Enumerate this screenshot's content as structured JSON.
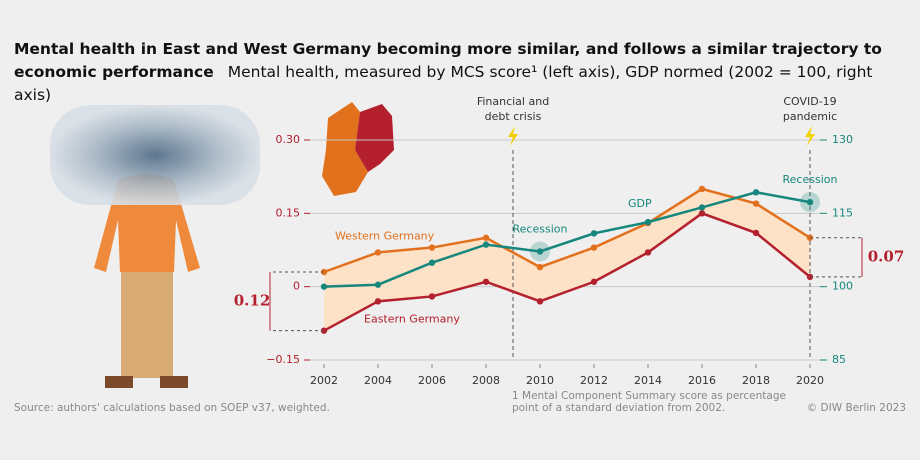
{
  "chart_data": {
    "type": "line",
    "title": "Mental health in East and West Germany becoming more similar, and follows a similar trajectory to economic performance",
    "subtitle": "Mental health, measured by MCS score¹ (left axis), GDP normed (2002 = 100, right axis)",
    "x": [
      2002,
      2004,
      2006,
      2008,
      2010,
      2012,
      2014,
      2016,
      2018,
      2020
    ],
    "xlim": [
      2000,
      2020.8
    ],
    "xticks": [
      2002,
      2004,
      2006,
      2008,
      2010,
      2012,
      2014,
      2016,
      2018,
      2020
    ],
    "ylim": [
      -0.15,
      0.3
    ],
    "yticks": [
      {
        "value": -0.15,
        "label": "−0.15"
      },
      0,
      {
        "value": 0.15,
        "label": "0.15"
      },
      {
        "value": 0.3,
        "label": "0.30"
      }
    ],
    "y2lim": [
      85,
      130
    ],
    "y2ticks": [
      85,
      100,
      115,
      130
    ],
    "grid": true,
    "series": [
      {
        "name": "Western Germany",
        "color": "#e2711d",
        "values": [
          0.03,
          0.07,
          0.08,
          0.1,
          0.04,
          0.08,
          0.13,
          0.2,
          0.17,
          0.1
        ]
      },
      {
        "name": "Eastern Germany",
        "color": "#b5202e",
        "values": [
          -0.09,
          -0.03,
          -0.02,
          0.01,
          -0.03,
          0.01,
          0.07,
          0.15,
          0.11,
          0.02
        ]
      },
      {
        "name": "GDP",
        "color": "#16877d",
        "axis": "y2",
        "values": [
          100,
          100.4,
          104.9,
          108.6,
          107.2,
          110.9,
          113.2,
          116.2,
          119.3,
          117.3
        ]
      }
    ],
    "events": [
      {
        "label": [
          "Financial and",
          "debt crisis"
        ],
        "x": 2009
      },
      {
        "label": [
          "COVID-19",
          "pandemic"
        ],
        "x": 2020
      }
    ],
    "recessions": [
      {
        "label": "Recession",
        "x": 2010
      },
      {
        "label": "Recession",
        "x": 2020
      }
    ],
    "gaps": [
      {
        "label": "0.12",
        "x": 2002
      },
      {
        "label": "0.07",
        "x": 2020
      }
    ],
    "source": "Source: authors' calculations based on SOEP v37, weighted.",
    "footnote": [
      "1   Mental Component Summary score as percentage",
      "point of a standard deviation from 2002."
    ],
    "credit": "© DIW Berlin 2023"
  }
}
